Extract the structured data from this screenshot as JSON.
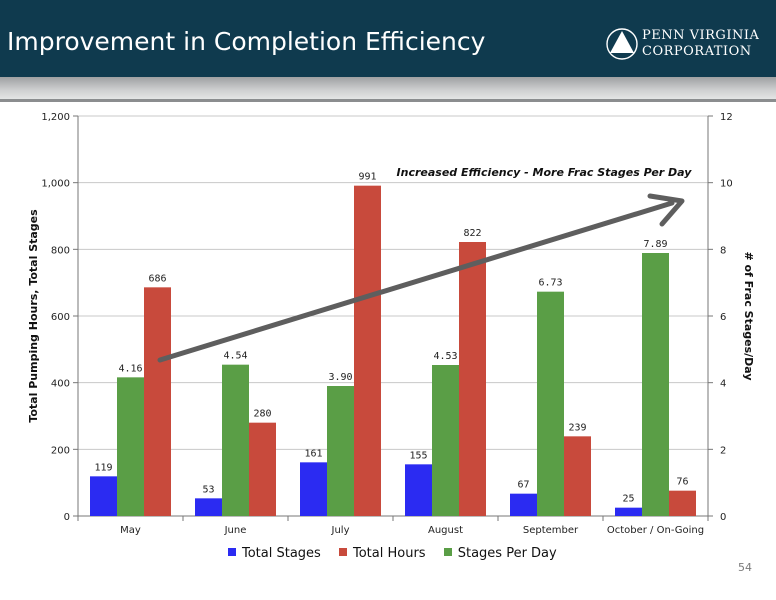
{
  "header": {
    "title": "Improvement in Completion Efficiency",
    "logo_line1": "PENN VIRGINIA",
    "logo_line2": "CORPORATION",
    "logo_icon": "triangle-in-circle-icon"
  },
  "page_number": "54",
  "colors": {
    "header_bg": "#0f3a4e",
    "total_stages": "#2b2bf2",
    "total_hours": "#c84a3c",
    "stages_per_day": "#5a9e46",
    "arrow": "#5e5e5e"
  },
  "chart_data": {
    "type": "bar",
    "title": "",
    "annotation": "Increased Efficiency - More Frac Stages Per Day",
    "categories": [
      "May",
      "June",
      "July",
      "August",
      "September",
      "October / On-Going"
    ],
    "ylabel": "Total Pumping Hours, Total Stages",
    "y2label": "# of Frac Stages/Day",
    "ylim": [
      0,
      1200
    ],
    "y2lim": [
      0,
      12
    ],
    "yticks": [
      "0",
      "200",
      "400",
      "600",
      "800",
      "1,000",
      "1,200"
    ],
    "y2ticks": [
      "0",
      "2",
      "4",
      "6",
      "8",
      "10",
      "12"
    ],
    "grid": true,
    "legend_position": "bottom",
    "series": [
      {
        "name": "Total Stages",
        "axis": "left",
        "values": [
          119,
          53,
          161,
          155,
          67,
          25
        ],
        "labels": [
          "119",
          "53",
          "161",
          "155",
          "67",
          "25"
        ]
      },
      {
        "name": "Stages Per Day",
        "axis": "right",
        "values": [
          4.16,
          4.54,
          3.9,
          4.53,
          6.73,
          7.89
        ],
        "labels": [
          "4.16",
          "4.54",
          "3.90",
          "4.53",
          "6.73",
          "7.89"
        ]
      },
      {
        "name": "Total Hours",
        "axis": "left",
        "values": [
          686,
          280,
          991,
          822,
          239,
          76
        ],
        "labels": [
          "686",
          "280",
          "991",
          "822",
          "239",
          "76"
        ]
      }
    ]
  }
}
